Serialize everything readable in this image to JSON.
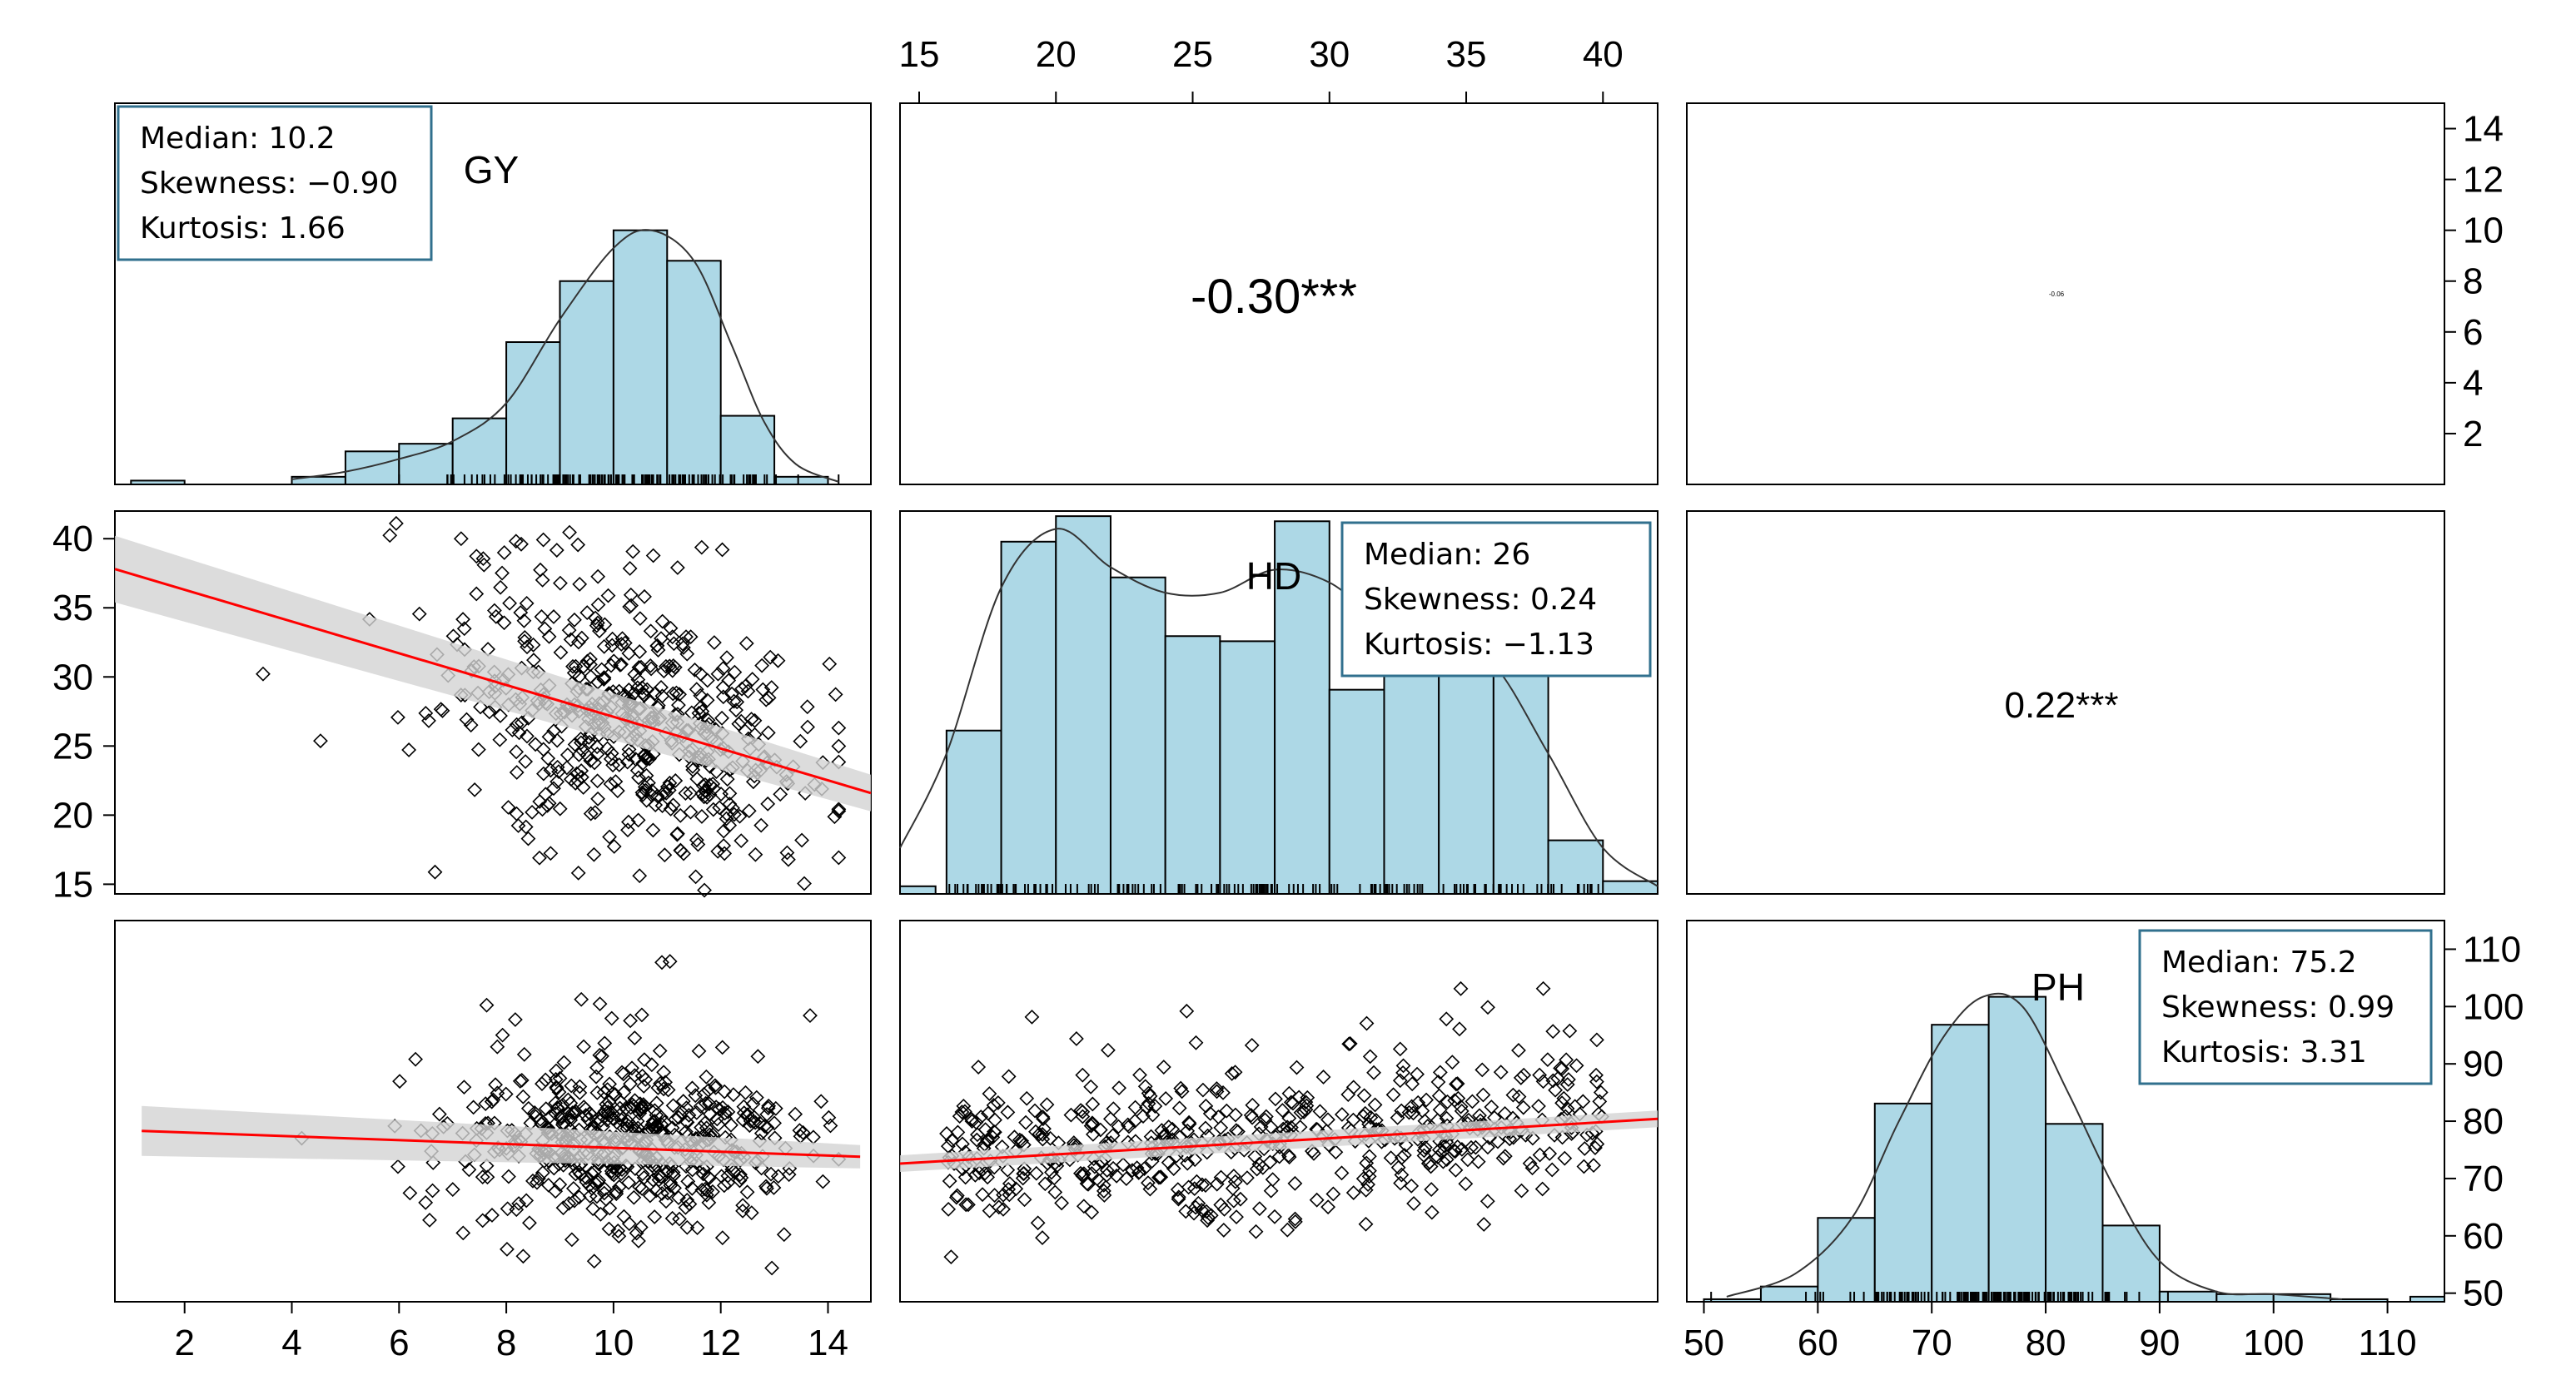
{
  "chart_data": {
    "type": "scatter-matrix",
    "variables": [
      "GY",
      "HD",
      "PH"
    ],
    "colors": {
      "hist_fill": "#add8e6",
      "fit_line": "#ff0000",
      "ci_band": "#d3d3d3",
      "stat_border": "#31708e"
    },
    "axes": {
      "GY": {
        "range": [
          0.7,
          14.8
        ],
        "ticks": [
          2,
          4,
          6,
          8,
          10,
          12,
          14
        ]
      },
      "HD": {
        "range": [
          14.3,
          42.0
        ],
        "ticks": [
          15,
          20,
          25,
          30,
          35,
          40
        ]
      },
      "PH": {
        "range": [
          48.5,
          115.0
        ],
        "ticks": [
          50,
          60,
          70,
          80,
          90,
          100,
          110
        ]
      },
      "count_scale": {
        "range": [
          0,
          15
        ],
        "ticks": [
          2,
          4,
          6,
          8,
          10,
          12,
          14
        ]
      }
    },
    "histograms": {
      "GY": {
        "bins": [
          [
            1,
            2,
            0.15
          ],
          [
            4,
            5,
            0.3
          ],
          [
            5,
            6,
            1.3
          ],
          [
            6,
            7,
            1.6
          ],
          [
            7,
            8,
            2.6
          ],
          [
            8,
            9,
            5.6
          ],
          [
            9,
            10,
            8
          ],
          [
            10,
            11,
            10
          ],
          [
            11,
            12,
            8.8
          ],
          [
            12,
            13,
            2.7
          ],
          [
            13,
            14,
            0.3
          ]
        ],
        "density": [
          [
            4,
            0.2
          ],
          [
            5,
            0.5
          ],
          [
            6,
            1.0
          ],
          [
            7,
            1.7
          ],
          [
            8,
            3.2
          ],
          [
            9,
            6.5
          ],
          [
            10,
            9.3
          ],
          [
            10.7,
            10
          ],
          [
            11.5,
            8.8
          ],
          [
            12.2,
            5.5
          ],
          [
            12.8,
            2.5
          ],
          [
            13.4,
            0.8
          ],
          [
            14.2,
            0.1
          ]
        ]
      },
      "HD": {
        "bins": [
          [
            14.3,
            15.6,
            0.3
          ],
          [
            16,
            18,
            6.4
          ],
          [
            18,
            20,
            13.8
          ],
          [
            20,
            22,
            14.8
          ],
          [
            22,
            24,
            12.4
          ],
          [
            24,
            26,
            10.1
          ],
          [
            26,
            28,
            9.9
          ],
          [
            28,
            30,
            14.6
          ],
          [
            30,
            32,
            8.0
          ],
          [
            32,
            34,
            9.1
          ],
          [
            34,
            36,
            11.9
          ],
          [
            36,
            38,
            9.9
          ],
          [
            38,
            40,
            2.1
          ],
          [
            40,
            42,
            0.5
          ]
        ],
        "density": [
          [
            14.3,
            1.8
          ],
          [
            16,
            5.5
          ],
          [
            18,
            12
          ],
          [
            20,
            14.3
          ],
          [
            22,
            12.8
          ],
          [
            24,
            11.8
          ],
          [
            26,
            11.8
          ],
          [
            28,
            12.7
          ],
          [
            30,
            12.2
          ],
          [
            32,
            10.6
          ],
          [
            34,
            10.2
          ],
          [
            36,
            9
          ],
          [
            38,
            5.5
          ],
          [
            40,
            1.8
          ],
          [
            42,
            0.3
          ]
        ]
      },
      "PH": {
        "bins": [
          [
            50,
            55,
            0.1
          ],
          [
            55,
            60,
            0.6
          ],
          [
            60,
            65,
            3.3
          ],
          [
            65,
            70,
            7.8
          ],
          [
            70,
            75,
            10.9
          ],
          [
            75,
            80,
            12.0
          ],
          [
            80,
            85,
            7.0
          ],
          [
            85,
            90,
            3.0
          ],
          [
            90,
            95,
            0.4
          ],
          [
            95,
            100,
            0.3
          ],
          [
            100,
            105,
            0.3
          ],
          [
            105,
            110,
            0.1
          ],
          [
            112,
            115,
            0.2
          ]
        ],
        "density": [
          [
            52,
            0.2
          ],
          [
            58,
            1.1
          ],
          [
            63,
            3.3
          ],
          [
            67,
            7.0
          ],
          [
            71,
            10.4
          ],
          [
            74.5,
            12.0
          ],
          [
            78,
            11.6
          ],
          [
            82,
            8.2
          ],
          [
            86,
            4.5
          ],
          [
            90,
            1.6
          ],
          [
            95,
            0.4
          ],
          [
            100,
            0.3
          ],
          [
            106,
            0.1
          ]
        ]
      }
    },
    "stats": {
      "GY": {
        "median": "Median: 10.2",
        "skewness": "Skewness: −0.90",
        "kurtosis": "Kurtosis: 1.66"
      },
      "HD": {
        "median": "Median: 26",
        "skewness": "Skewness: 0.24",
        "kurtosis": "Kurtosis: −1.13"
      },
      "PH": {
        "median": "Median: 75.2",
        "skewness": "Skewness: 0.99",
        "kurtosis": "Kurtosis: 3.31"
      }
    },
    "correlations": {
      "GY_HD": "-0.30***",
      "GY_PH": "-0.06",
      "HD_PH": "0.22***"
    },
    "regressions": {
      "GY_HD": {
        "x": [
          0.7,
          14.8
        ],
        "y": [
          37.8,
          21.6
        ]
      },
      "GY_PH": {
        "x": [
          1.2,
          14.6
        ],
        "y": [
          78.3,
          73.8
        ]
      },
      "HD_PH": {
        "x": [
          14.3,
          42.0
        ],
        "y": [
          72.6,
          80.4
        ]
      }
    }
  }
}
